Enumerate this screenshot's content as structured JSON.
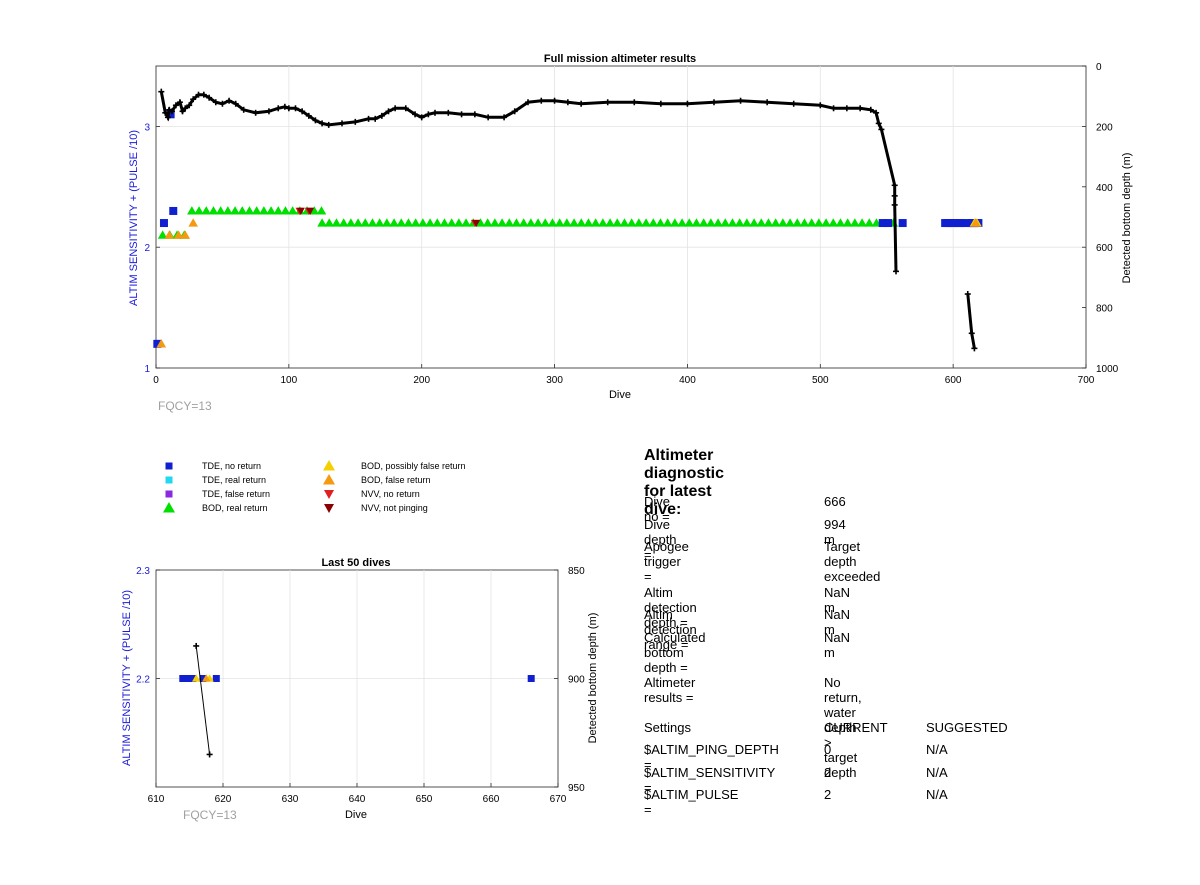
{
  "main_chart": {
    "title": "Full mission altimeter results",
    "xlabel": "Dive",
    "ylabel_left": "ALTIM SENSITIVITY + (PULSE /10)",
    "ylabel_right": "Detected bottom depth (m)",
    "x_ticks": [
      "0",
      "100",
      "200",
      "300",
      "400",
      "500",
      "600",
      "700"
    ],
    "y_left_ticks": [
      "1",
      "2",
      "3"
    ],
    "y_right_ticks": [
      "0",
      "200",
      "400",
      "600",
      "800",
      "1000"
    ],
    "fqcy": "FQCY=13"
  },
  "inset_chart": {
    "title": "Last 50 dives",
    "xlabel": "Dive",
    "ylabel_left": "ALTIM SENSITIVITY + (PULSE /10)",
    "ylabel_right": "Detected bottom depth (m)",
    "x_ticks": [
      "610",
      "620",
      "630",
      "640",
      "650",
      "660",
      "670"
    ],
    "y_left_ticks": [
      "2.2",
      "2.3"
    ],
    "y_right_ticks": [
      "850",
      "900",
      "950"
    ],
    "fqcy": "FQCY=13"
  },
  "legend": {
    "items": [
      {
        "label": "TDE, no return",
        "marker": "square",
        "color": "#1020d0"
      },
      {
        "label": "TDE, real return",
        "marker": "square",
        "color": "#20d8f0"
      },
      {
        "label": "TDE, false return",
        "marker": "square",
        "color": "#8a2be2"
      },
      {
        "label": "BOD, real return",
        "marker": "triangle-up",
        "color": "#00e000"
      },
      {
        "label": "BOD, possibly false return",
        "marker": "triangle-up",
        "color": "#f5d000"
      },
      {
        "label": "BOD, false return",
        "marker": "triangle-up",
        "color": "#f59a10"
      },
      {
        "label": "NVV, no return",
        "marker": "triangle-down",
        "color": "#e02020"
      },
      {
        "label": "NVV, not pinging",
        "marker": "triangle-down",
        "color": "#8b0000"
      }
    ]
  },
  "diagnostic": {
    "title": "Altimeter diagnostic for latest dive:",
    "rows": [
      {
        "label": "Dive no =",
        "value": "666"
      },
      {
        "label": "Dive depth =",
        "value": "994 m"
      },
      {
        "label": "Apogee trigger =",
        "value": "Target depth exceeded"
      },
      {
        "label": "Altim detection depth =",
        "value": "NaN m"
      },
      {
        "label": "Altim detection range =",
        "value": "NaN m"
      },
      {
        "label": "Calculated bottom depth =",
        "value": "NaN m"
      },
      {
        "label": "Altimeter results =",
        "value": "No return, water depth > target depth"
      }
    ],
    "settings_header": {
      "label": "Settings",
      "current": "CURRENT",
      "suggested": "SUGGESTED"
    },
    "settings": [
      {
        "label": "$ALTIM_PING_DEPTH =",
        "current": "0",
        "suggested": "N/A"
      },
      {
        "label": "$ALTIM_SENSITIVITY =",
        "current": "2",
        "suggested": "N/A"
      },
      {
        "label": "$ALTIM_PULSE =",
        "current": "2",
        "suggested": "N/A"
      }
    ]
  },
  "chart_data": [
    {
      "type": "scatter",
      "title": "Full mission altimeter results",
      "xlabel": "Dive",
      "ylabel": "ALTIM SENSITIVITY + (PULSE /10)",
      "ylabel_right": "Detected bottom depth (m)",
      "xlim": [
        0,
        700
      ],
      "ylim": [
        1,
        3.5
      ],
      "ylim_right": [
        0,
        1000
      ],
      "y_right_reversed": true,
      "grid": true,
      "series": [
        {
          "name": "BOD, real return",
          "color": "#00e000",
          "marker": "triangle-up",
          "segments": [
            {
              "x_start": 27,
              "x_end": 126,
              "y": 2.3
            },
            {
              "x_start": 125,
              "x_end": 545,
              "y": 2.2
            },
            {
              "x_start": 5,
              "x_end": 23,
              "y": 2.1
            },
            {
              "x_start": 555,
              "x_end": 557,
              "y": 2.2
            }
          ]
        },
        {
          "name": "TDE, no return",
          "color": "#1020d0",
          "marker": "square",
          "points": [
            [
              1,
              1.2
            ],
            [
              6,
              2.2
            ],
            [
              13,
              2.3
            ],
            [
              11,
              3.1
            ],
            [
              547,
              2.2
            ],
            [
              551,
              2.2
            ],
            [
              562,
              2.2
            ],
            [
              596,
              2.2
            ],
            [
              600,
              2.2
            ],
            [
              605,
              2.2
            ],
            [
              614,
              2.2
            ],
            [
              615,
              2.2
            ],
            [
              616,
              2.2
            ],
            [
              619,
              2.2
            ]
          ],
          "segments": [
            {
              "x_start": 594,
              "x_end": 619,
              "y": 2.2
            }
          ]
        },
        {
          "name": "BOD, possibly false return",
          "color": "#f5d000",
          "marker": "triangle-up",
          "points": [
            [
              616,
              2.2
            ],
            [
              618,
              2.2
            ]
          ]
        },
        {
          "name": "BOD, false return",
          "color": "#f59a10",
          "marker": "triangle-up",
          "points": [
            [
              4,
              1.2
            ],
            [
              22,
              2.1
            ],
            [
              28,
              2.2
            ],
            [
              10,
              2.1
            ],
            [
              17,
              2.1
            ],
            [
              617,
              2.2
            ]
          ]
        },
        {
          "name": "NVV, no return",
          "color": "#e02020",
          "marker": "triangle-down",
          "points": [
            [
              108,
              2.3
            ],
            [
              115,
              2.3
            ],
            [
              240,
              2.2
            ]
          ]
        },
        {
          "name": "NVV, not pinging",
          "color": "#8b0000",
          "marker": "triangle-down",
          "points": [
            [
              109,
              2.3
            ],
            [
              116,
              2.3
            ],
            [
              241,
              2.2
            ]
          ]
        },
        {
          "name": "Detected bottom depth",
          "axis": "right",
          "color": "#000000",
          "marker": "plus",
          "points": [
            [
              4,
              85
            ],
            [
              7,
              155
            ],
            [
              9,
              170
            ],
            [
              10,
              145
            ],
            [
              12,
              150
            ],
            [
              15,
              130
            ],
            [
              18,
              120
            ],
            [
              20,
              150
            ],
            [
              22,
              140
            ],
            [
              25,
              130
            ],
            [
              28,
              110
            ],
            [
              32,
              95
            ],
            [
              36,
              95
            ],
            [
              40,
              105
            ],
            [
              45,
              120
            ],
            [
              50,
              125
            ],
            [
              55,
              115
            ],
            [
              60,
              125
            ],
            [
              66,
              145
            ],
            [
              75,
              155
            ],
            [
              85,
              150
            ],
            [
              92,
              140
            ],
            [
              97,
              135
            ],
            [
              100,
              140
            ],
            [
              105,
              140
            ],
            [
              110,
              150
            ],
            [
              115,
              165
            ],
            [
              120,
              180
            ],
            [
              125,
              190
            ],
            [
              130,
              195
            ],
            [
              140,
              190
            ],
            [
              150,
              185
            ],
            [
              160,
              175
            ],
            [
              165,
              175
            ],
            [
              170,
              165
            ],
            [
              175,
              150
            ],
            [
              180,
              140
            ],
            [
              188,
              140
            ],
            [
              195,
              160
            ],
            [
              200,
              170
            ],
            [
              205,
              160
            ],
            [
              210,
              155
            ],
            [
              220,
              155
            ],
            [
              230,
              160
            ],
            [
              240,
              160
            ],
            [
              250,
              170
            ],
            [
              262,
              170
            ],
            [
              270,
              150
            ],
            [
              280,
              120
            ],
            [
              290,
              115
            ],
            [
              300,
              115
            ],
            [
              310,
              120
            ],
            [
              320,
              125
            ],
            [
              340,
              120
            ],
            [
              360,
              120
            ],
            [
              380,
              125
            ],
            [
              400,
              125
            ],
            [
              420,
              120
            ],
            [
              440,
              115
            ],
            [
              460,
              120
            ],
            [
              480,
              125
            ],
            [
              500,
              130
            ],
            [
              510,
              140
            ],
            [
              520,
              140
            ],
            [
              530,
              140
            ],
            [
              538,
              145
            ],
            [
              542,
              155
            ],
            [
              544,
              190
            ],
            [
              546,
              210
            ],
            [
              556,
              395
            ],
            [
              556,
              430
            ],
            [
              556,
              460
            ],
            [
              557,
              680
            ],
            [
              611,
              755
            ],
            [
              614,
              885
            ],
            [
              616,
              935
            ]
          ]
        }
      ]
    },
    {
      "type": "scatter",
      "title": "Last 50 dives",
      "xlabel": "Dive",
      "ylabel": "ALTIM SENSITIVITY + (PULSE /10)",
      "ylabel_right": "Detected bottom depth (m)",
      "xlim": [
        610,
        670
      ],
      "ylim": [
        2.1,
        2.3
      ],
      "ylim_right": [
        850,
        950
      ],
      "y_right_reversed": true,
      "grid": true,
      "series": [
        {
          "name": "TDE, no return",
          "color": "#1020d0",
          "marker": "square",
          "points": [
            [
              614,
              2.2
            ],
            [
              614.5,
              2.2
            ],
            [
              615,
              2.2
            ],
            [
              615.5,
              2.2
            ],
            [
              617,
              2.2
            ],
            [
              619,
              2.2
            ],
            [
              666,
              2.2
            ]
          ]
        },
        {
          "name": "BOD, possibly false return",
          "color": "#f5d000",
          "marker": "triangle-up",
          "points": [
            [
              616,
              2.2
            ],
            [
              618,
              2.2
            ]
          ]
        },
        {
          "name": "BOD, false return",
          "color": "#f59a10",
          "marker": "triangle-up",
          "points": [
            [
              617.5,
              2.2
            ]
          ]
        },
        {
          "name": "Detected bottom depth",
          "axis": "right",
          "color": "#000000",
          "marker": "plus",
          "points": [
            [
              616,
              885
            ],
            [
              618,
              935
            ]
          ]
        }
      ]
    }
  ]
}
